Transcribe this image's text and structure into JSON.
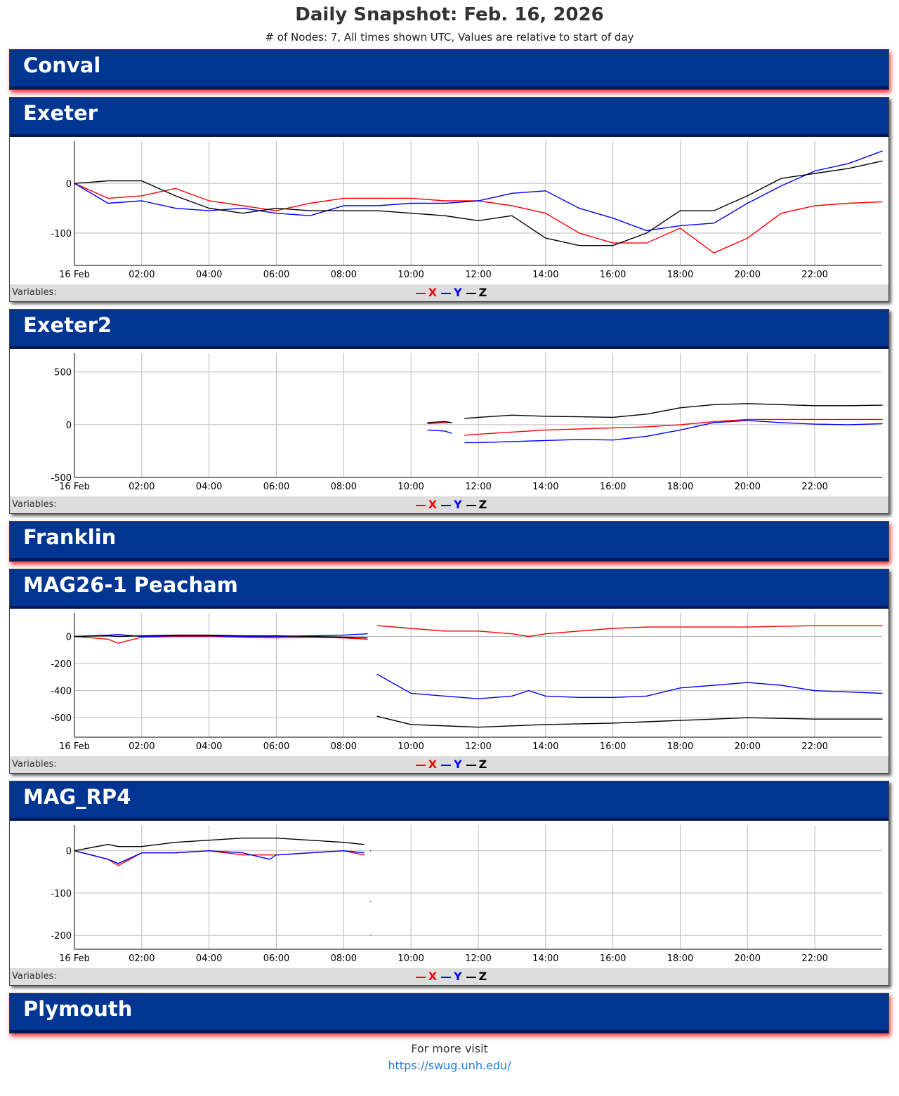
{
  "header": {
    "title": "Daily Snapshot: Feb. 16, 2026",
    "subtitle": "# of Nodes: 7, All times shown UTC, Values are relative to start of day"
  },
  "nodes": [
    {
      "name": "Conval"
    },
    {
      "name": "Exeter",
      "chart_data": {
        "type": "line",
        "legend_title": "Variables:",
        "x": [
          0,
          1,
          2,
          3,
          4,
          5,
          6,
          7,
          8,
          9,
          10,
          11,
          12,
          13,
          14,
          15,
          16,
          17,
          18,
          19,
          20,
          21,
          22,
          23,
          24
        ],
        "xlim": [
          0,
          24
        ],
        "xticks": [
          {
            "value": 0,
            "label": "16 Feb"
          },
          {
            "value": 2,
            "label": "02:00"
          },
          {
            "value": 4,
            "label": "04:00"
          },
          {
            "value": 6,
            "label": "06:00"
          },
          {
            "value": 8,
            "label": "08:00"
          },
          {
            "value": 10,
            "label": "10:00"
          },
          {
            "value": 12,
            "label": "12:00"
          },
          {
            "value": 14,
            "label": "14:00"
          },
          {
            "value": 16,
            "label": "16:00"
          },
          {
            "value": 18,
            "label": "18:00"
          },
          {
            "value": 20,
            "label": "20:00"
          },
          {
            "value": 22,
            "label": "22:00"
          }
        ],
        "ylim": [
          -165,
          85
        ],
        "yticks": [
          -100,
          0
        ],
        "grid": true,
        "series": [
          {
            "name": "X",
            "color": "#ff0000",
            "values": [
              0,
              -30,
              -25,
              -10,
              -35,
              -45,
              -55,
              -40,
              -30,
              -30,
              -30,
              -35,
              -35,
              -45,
              -60,
              -100,
              -120,
              -120,
              -90,
              -140,
              -110,
              -60,
              -45,
              -40,
              -37
            ]
          },
          {
            "name": "Y",
            "color": "#0000ff",
            "values": [
              0,
              -40,
              -35,
              -50,
              -55,
              -50,
              -60,
              -65,
              -45,
              -45,
              -40,
              -40,
              -35,
              -20,
              -15,
              -50,
              -70,
              -95,
              -85,
              -80,
              -40,
              -5,
              25,
              40,
              65
            ]
          },
          {
            "name": "Z",
            "color": "#000000",
            "values": [
              0,
              5,
              5,
              -25,
              -50,
              -60,
              -50,
              -55,
              -55,
              -55,
              -60,
              -65,
              -75,
              -65,
              -110,
              -125,
              -125,
              -100,
              -55,
              -55,
              -25,
              10,
              20,
              30,
              45
            ]
          }
        ]
      }
    },
    {
      "name": "Exeter2",
      "chart_data": {
        "type": "line",
        "legend_title": "Variables:",
        "x": [
          0,
          1,
          2,
          3,
          4,
          5,
          6,
          7,
          8,
          9,
          10.5,
          11,
          11.2,
          11.4,
          11.6,
          12,
          13,
          14,
          15,
          16,
          17,
          18,
          19,
          20,
          21,
          22,
          23,
          24
        ],
        "xlim": [
          0,
          24
        ],
        "xticks": [
          {
            "value": 0,
            "label": "16 Feb"
          },
          {
            "value": 2,
            "label": "02:00"
          },
          {
            "value": 4,
            "label": "04:00"
          },
          {
            "value": 6,
            "label": "06:00"
          },
          {
            "value": 8,
            "label": "08:00"
          },
          {
            "value": 10,
            "label": "10:00"
          },
          {
            "value": 12,
            "label": "12:00"
          },
          {
            "value": 14,
            "label": "14:00"
          },
          {
            "value": 16,
            "label": "16:00"
          },
          {
            "value": 18,
            "label": "18:00"
          },
          {
            "value": 20,
            "label": "20:00"
          },
          {
            "value": 22,
            "label": "22:00"
          }
        ],
        "ylim": [
          -500,
          678
        ],
        "yticks": [
          -500,
          0,
          500
        ],
        "grid": true,
        "series": [
          {
            "name": "X",
            "color": "#ff0000",
            "values": [
              null,
              null,
              null,
              null,
              null,
              null,
              null,
              null,
              null,
              null,
              10,
              20,
              20,
              null,
              -100,
              -90,
              -70,
              -50,
              -40,
              -30,
              -20,
              0,
              30,
              50,
              50,
              50,
              50,
              50
            ]
          },
          {
            "name": "Y",
            "color": "#0000ff",
            "values": [
              null,
              null,
              null,
              null,
              null,
              null,
              null,
              null,
              null,
              null,
              -50,
              -60,
              -80,
              null,
              -170,
              -170,
              -160,
              -150,
              -140,
              -145,
              -110,
              -50,
              20,
              40,
              20,
              5,
              0,
              10
            ]
          },
          {
            "name": "Z",
            "color": "#000000",
            "values": [
              null,
              null,
              null,
              null,
              null,
              null,
              null,
              null,
              null,
              null,
              20,
              30,
              20,
              null,
              60,
              70,
              90,
              80,
              75,
              70,
              100,
              160,
              190,
              200,
              190,
              180,
              180,
              185
            ]
          }
        ]
      }
    },
    {
      "name": "Franklin"
    },
    {
      "name": "MAG26-1 Peacham",
      "chart_data": {
        "type": "line",
        "legend_title": "Variables:",
        "x": [
          0,
          1,
          1.3,
          2,
          3,
          4,
          5,
          6,
          7,
          8,
          8.7,
          8.85,
          9,
          10,
          11,
          12,
          13,
          13.5,
          14,
          15,
          16,
          17,
          18,
          19,
          20,
          21,
          22,
          23,
          24
        ],
        "xlim": [
          0,
          24
        ],
        "xticks": [
          {
            "value": 0,
            "label": "16 Feb"
          },
          {
            "value": 2,
            "label": "02:00"
          },
          {
            "value": 4,
            "label": "04:00"
          },
          {
            "value": 6,
            "label": "06:00"
          },
          {
            "value": 8,
            "label": "08:00"
          },
          {
            "value": 10,
            "label": "10:00"
          },
          {
            "value": 12,
            "label": "12:00"
          },
          {
            "value": 14,
            "label": "14:00"
          },
          {
            "value": 16,
            "label": "16:00"
          },
          {
            "value": 18,
            "label": "18:00"
          },
          {
            "value": 20,
            "label": "20:00"
          },
          {
            "value": 22,
            "label": "22:00"
          }
        ],
        "ylim": [
          -744,
          174
        ],
        "yticks": [
          -600,
          -400,
          -200,
          0
        ],
        "grid": true,
        "series": [
          {
            "name": "X",
            "color": "#ff0000",
            "values": [
              0,
              -20,
              -50,
              -5,
              0,
              0,
              -5,
              -10,
              -5,
              -10,
              -20,
              null,
              80,
              60,
              40,
              40,
              20,
              0,
              20,
              40,
              60,
              70,
              70,
              70,
              70,
              75,
              80,
              80,
              80
            ]
          },
          {
            "name": "Y",
            "color": "#0000ff",
            "values": [
              0,
              10,
              15,
              0,
              5,
              5,
              0,
              0,
              5,
              10,
              20,
              null,
              -280,
              -420,
              -440,
              -460,
              -440,
              -400,
              -440,
              -450,
              -450,
              -440,
              -380,
              -360,
              -340,
              -360,
              -400,
              -410,
              -420
            ]
          },
          {
            "name": "Z",
            "color": "#000000",
            "values": [
              0,
              5,
              0,
              5,
              10,
              10,
              5,
              5,
              0,
              -5,
              -10,
              null,
              -590,
              -650,
              -660,
              -670,
              -660,
              -655,
              -650,
              -645,
              -640,
              -630,
              -620,
              -610,
              -600,
              -605,
              -610,
              -610,
              -610
            ]
          }
        ]
      }
    },
    {
      "name": "MAG_RP4",
      "chart_data": {
        "type": "line",
        "legend_title": "Variables:",
        "x": [
          0,
          1,
          1.3,
          2,
          3,
          4,
          5,
          5.8,
          6,
          7,
          8,
          8.6,
          8.7,
          8.8
        ],
        "xlim": [
          0,
          24
        ],
        "xticks": [
          {
            "value": 0,
            "label": "16 Feb"
          },
          {
            "value": 2,
            "label": "02:00"
          },
          {
            "value": 4,
            "label": "04:00"
          },
          {
            "value": 6,
            "label": "06:00"
          },
          {
            "value": 8,
            "label": "08:00"
          },
          {
            "value": 10,
            "label": "10:00"
          },
          {
            "value": 12,
            "label": "12:00"
          },
          {
            "value": 14,
            "label": "14:00"
          },
          {
            "value": 16,
            "label": "16:00"
          },
          {
            "value": 18,
            "label": "18:00"
          },
          {
            "value": 20,
            "label": "20:00"
          },
          {
            "value": 22,
            "label": "22:00"
          }
        ],
        "ylim": [
          -233,
          61
        ],
        "yticks": [
          -200,
          -100,
          0
        ],
        "grid": true,
        "series": [
          {
            "name": "X",
            "color": "#ff0000",
            "values": [
              0,
              -20,
              -35,
              -5,
              -5,
              0,
              -10,
              -10,
              -10,
              -5,
              0,
              -10,
              null,
              -200
            ]
          },
          {
            "name": "Y",
            "color": "#0000ff",
            "values": [
              0,
              -20,
              -30,
              -5,
              -5,
              0,
              -5,
              -20,
              -10,
              -5,
              0,
              -5,
              null,
              -120
            ]
          },
          {
            "name": "Z",
            "color": "#000000",
            "values": [
              0,
              15,
              10,
              10,
              20,
              25,
              30,
              30,
              30,
              25,
              20,
              15,
              null,
              0
            ]
          }
        ]
      }
    },
    {
      "name": "Plymouth"
    }
  ],
  "footer": {
    "text": "For more visit",
    "link": "https://swug.unh.edu/"
  }
}
